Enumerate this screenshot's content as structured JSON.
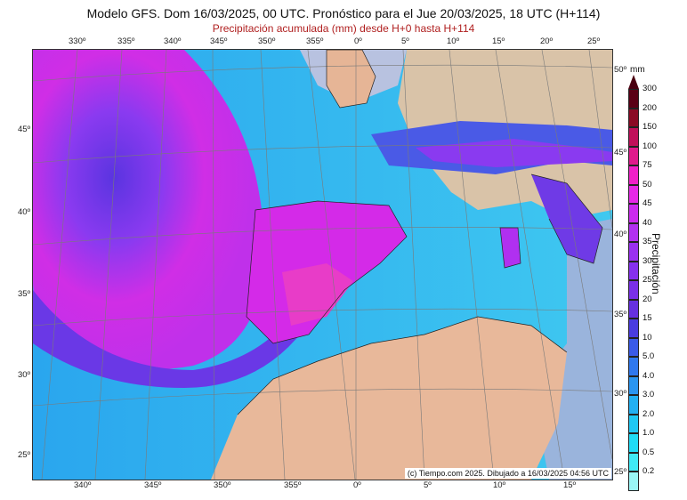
{
  "header": {
    "title": "Modelo GFS. Dom 16/03/2025, 00 UTC. Pronóstico para el Jue 20/03/2025, 18 UTC (H+114)",
    "subtitle": "Precipitación acumulada (mm) desde H+0 hasta H+114"
  },
  "map": {
    "top_lon_labels": [
      "330º",
      "335º",
      "340º",
      "345º",
      "350º",
      "355º",
      "0º",
      "5º",
      "10º",
      "15º",
      "20º",
      "25º"
    ],
    "bottom_lon_labels": [
      "340º",
      "345º",
      "350º",
      "355º",
      "0º",
      "5º",
      "10º",
      "15º"
    ],
    "left_lat_labels": [
      "45º",
      "40º",
      "35º",
      "30º",
      "25º"
    ],
    "right_lat_labels": [
      "50º",
      "45º",
      "40º",
      "35º",
      "30º",
      "25º"
    ],
    "credit": "(c) Tiempo.com 2025. Dibujado a 16/03/2025 04:56 UTC"
  },
  "legend": {
    "unit": "mm",
    "title": "Precipitación",
    "levels": [
      "300",
      "200",
      "150",
      "100",
      "75",
      "50",
      "45",
      "40",
      "35",
      "30",
      "25",
      "20",
      "15",
      "10",
      "5.0",
      "4.0",
      "3.0",
      "2.0",
      "1.0",
      "0.5",
      "0.2"
    ],
    "colors": [
      "#5a0015",
      "#8a0a25",
      "#c0105a",
      "#e01a8c",
      "#f020c8",
      "#e628e6",
      "#cc2aee",
      "#b230f0",
      "#9a30f0",
      "#8630ee",
      "#7a30e8",
      "#6630e0",
      "#4a3ce0",
      "#3a5ae8",
      "#2f78ee",
      "#2a95f0",
      "#22b0f2",
      "#20c8f4",
      "#20dcf6",
      "#40eaf6",
      "#9af6f6"
    ]
  }
}
